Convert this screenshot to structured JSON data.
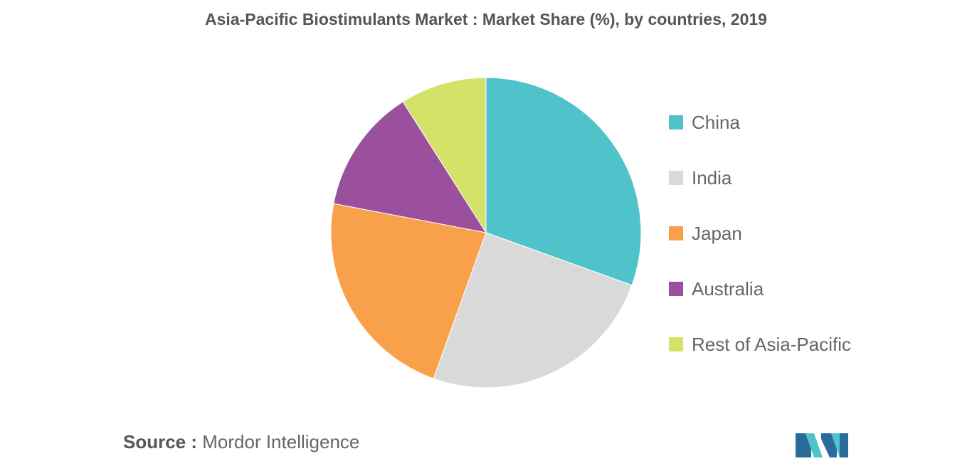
{
  "chart_data": {
    "type": "pie",
    "title": "Asia-Pacific Biostimulants Market : Market Share (%), by countries, 2019",
    "categories": [
      "China",
      "India",
      "Japan",
      "Australia",
      "Rest of Asia-Pacific"
    ],
    "values": [
      30.5,
      25.0,
      22.5,
      13.0,
      9.0
    ],
    "colors": [
      "#4fc3c9",
      "#d9d9d9",
      "#f9a04a",
      "#9b509e",
      "#d4e26a"
    ],
    "start_angle_deg": 0,
    "direction": "clockwise",
    "legend_position": "right"
  },
  "source": {
    "label": "Source :",
    "text": " Mordor Intelligence"
  },
  "logo": {
    "icon": "mordor-intelligence-logo-icon",
    "colors": [
      "#2a6b9a",
      "#4fc3c9"
    ]
  }
}
